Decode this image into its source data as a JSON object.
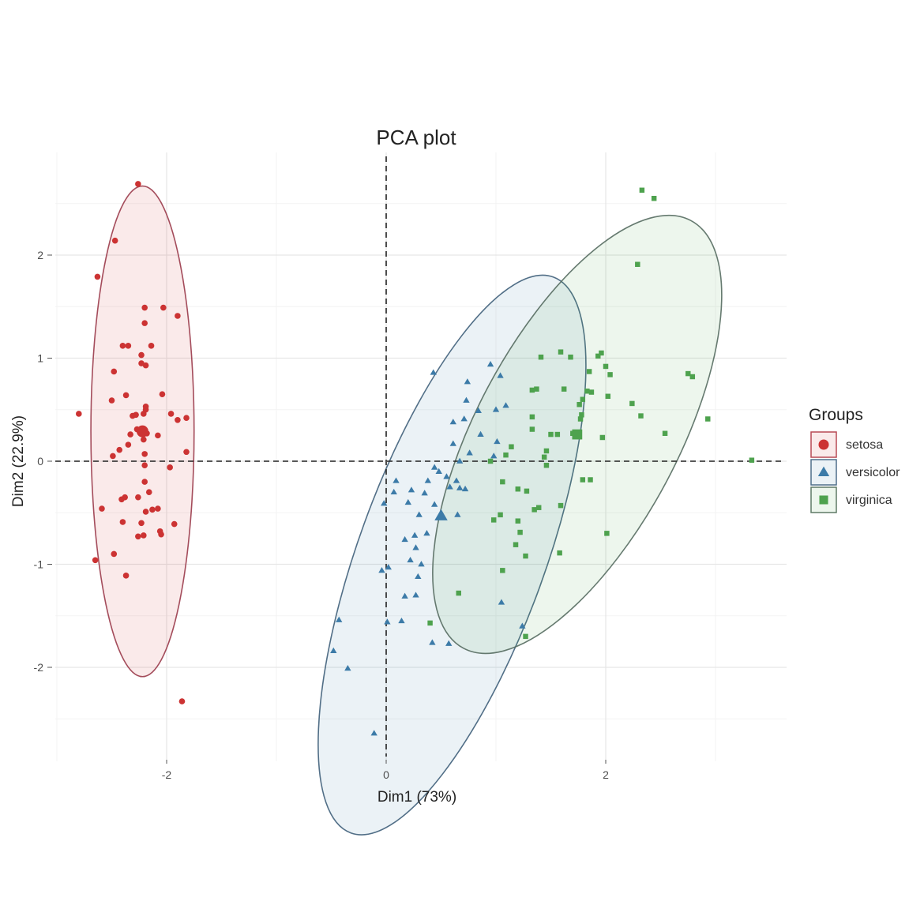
{
  "chart_data": {
    "type": "scatter",
    "title": "PCA plot",
    "xlabel": "Dim1 (73%)",
    "ylabel": "Dim2 (22.9%)",
    "xlim": [
      -3.0,
      3.7
    ],
    "ylim": [
      -2.85,
      3.25
    ],
    "xticks": [
      -2,
      0,
      2
    ],
    "yticks": [
      -2,
      -1,
      0,
      1,
      2
    ],
    "xtick_labels": [
      "-2",
      "0",
      "2"
    ],
    "ytick_labels": [
      "-2",
      "-1",
      "0",
      "1",
      "2"
    ],
    "grid": true,
    "reference_lines": {
      "x": 0,
      "y": 0,
      "style": "dashed"
    },
    "legend": {
      "title": "Groups",
      "position": "right"
    },
    "series": [
      {
        "name": "setosa",
        "color": "#cc3333",
        "marker": "circle",
        "centroid": [
          -2.22,
          0.29
        ],
        "ellipse": {
          "center": [
            -2.22,
            0.29
          ],
          "semi_axis_x": 0.47,
          "semi_axis_y": 2.38,
          "angle_deg": 0
        },
        "points": [
          [
            -2.26,
            2.69
          ],
          [
            -2.47,
            2.14
          ],
          [
            -2.63,
            1.79
          ],
          [
            -2.2,
            1.34
          ],
          [
            -2.35,
            1.12
          ],
          [
            -2.4,
            1.12
          ],
          [
            -2.14,
            1.12
          ],
          [
            -2.2,
            1.49
          ],
          [
            -2.03,
            1.49
          ],
          [
            -1.9,
            1.41
          ],
          [
            -2.23,
            1.03
          ],
          [
            -2.23,
            0.95
          ],
          [
            -2.19,
            0.93
          ],
          [
            -2.48,
            0.87
          ],
          [
            -2.8,
            0.46
          ],
          [
            -2.5,
            0.59
          ],
          [
            -2.37,
            0.64
          ],
          [
            -2.31,
            0.44
          ],
          [
            -2.28,
            0.45
          ],
          [
            -2.19,
            0.5
          ],
          [
            -2.19,
            0.53
          ],
          [
            -2.21,
            0.46
          ],
          [
            -2.04,
            0.65
          ],
          [
            -1.96,
            0.46
          ],
          [
            -1.9,
            0.4
          ],
          [
            -1.82,
            0.42
          ],
          [
            -2.27,
            0.31
          ],
          [
            -2.23,
            0.27
          ],
          [
            -2.18,
            0.27
          ],
          [
            -2.33,
            0.26
          ],
          [
            -2.21,
            0.21
          ],
          [
            -2.08,
            0.25
          ],
          [
            -2.35,
            0.16
          ],
          [
            -2.49,
            0.05
          ],
          [
            -2.2,
            0.07
          ],
          [
            -2.43,
            0.11
          ],
          [
            -1.82,
            0.09
          ],
          [
            -2.2,
            -0.04
          ],
          [
            -1.97,
            -0.06
          ],
          [
            -2.2,
            -0.2
          ],
          [
            -2.38,
            -0.35
          ],
          [
            -2.41,
            -0.37
          ],
          [
            -2.26,
            -0.35
          ],
          [
            -2.16,
            -0.3
          ],
          [
            -2.19,
            -0.49
          ],
          [
            -2.13,
            -0.47
          ],
          [
            -2.08,
            -0.46
          ],
          [
            -2.59,
            -0.46
          ],
          [
            -2.4,
            -0.59
          ],
          [
            -2.23,
            -0.6
          ],
          [
            -1.93,
            -0.61
          ],
          [
            -2.06,
            -0.68
          ],
          [
            -2.05,
            -0.71
          ],
          [
            -2.21,
            -0.72
          ],
          [
            -2.26,
            -0.73
          ],
          [
            -2.48,
            -0.9
          ],
          [
            -2.65,
            -0.96
          ],
          [
            -2.37,
            -1.11
          ],
          [
            -1.86,
            -2.33
          ]
        ]
      },
      {
        "name": "versicolor",
        "color": "#3c7ba8",
        "marker": "triangle",
        "centroid": [
          0.5,
          -0.53
        ],
        "ellipse": {
          "center": [
            0.6,
            -0.91
          ],
          "semi_axis_x": 0.85,
          "semi_axis_y": 2.87,
          "angle_deg": 20
        },
        "points": [
          [
            0.43,
            0.86
          ],
          [
            0.74,
            0.77
          ],
          [
            0.73,
            0.59
          ],
          [
            0.95,
            0.94
          ],
          [
            1.04,
            0.83
          ],
          [
            1.09,
            0.54
          ],
          [
            0.84,
            0.49
          ],
          [
            1.0,
            0.5
          ],
          [
            0.71,
            0.41
          ],
          [
            0.61,
            0.38
          ],
          [
            0.86,
            0.26
          ],
          [
            1.01,
            0.19
          ],
          [
            0.61,
            0.17
          ],
          [
            0.67,
            0.0
          ],
          [
            0.76,
            0.08
          ],
          [
            0.98,
            0.05
          ],
          [
            0.44,
            -0.06
          ],
          [
            0.48,
            -0.1
          ],
          [
            0.64,
            -0.19
          ],
          [
            0.72,
            -0.27
          ],
          [
            0.55,
            -0.15
          ],
          [
            0.58,
            -0.25
          ],
          [
            0.67,
            -0.26
          ],
          [
            0.38,
            -0.19
          ],
          [
            0.09,
            -0.19
          ],
          [
            0.07,
            -0.3
          ],
          [
            0.23,
            -0.28
          ],
          [
            0.2,
            -0.4
          ],
          [
            0.35,
            -0.31
          ],
          [
            -0.02,
            -0.41
          ],
          [
            0.3,
            -0.52
          ],
          [
            0.44,
            -0.42
          ],
          [
            0.65,
            -0.52
          ],
          [
            0.5,
            -0.53
          ],
          [
            0.37,
            -0.7
          ],
          [
            0.26,
            -0.72
          ],
          [
            0.17,
            -0.76
          ],
          [
            0.27,
            -0.84
          ],
          [
            0.22,
            -0.96
          ],
          [
            0.32,
            -1.0
          ],
          [
            0.02,
            -1.03
          ],
          [
            -0.04,
            -1.06
          ],
          [
            0.29,
            -1.12
          ],
          [
            0.17,
            -1.31
          ],
          [
            0.27,
            -1.3
          ],
          [
            -0.43,
            -1.54
          ],
          [
            0.01,
            -1.56
          ],
          [
            0.14,
            -1.55
          ],
          [
            0.42,
            -1.76
          ],
          [
            0.57,
            -1.77
          ],
          [
            1.05,
            -1.37
          ],
          [
            1.24,
            -1.6
          ],
          [
            -0.48,
            -1.84
          ],
          [
            -0.35,
            -2.01
          ],
          [
            -0.11,
            -2.64
          ]
        ]
      },
      {
        "name": "virginica",
        "color": "#4ea24e",
        "marker": "square",
        "centroid": [
          1.74,
          0.26
        ],
        "ellipse": {
          "center": [
            1.74,
            0.26
          ],
          "semi_axis_x": 0.92,
          "semi_axis_y": 2.35,
          "angle_deg": 28
        },
        "points": [
          [
            2.33,
            2.63
          ],
          [
            2.44,
            2.55
          ],
          [
            2.29,
            1.91
          ],
          [
            1.59,
            1.06
          ],
          [
            1.41,
            1.01
          ],
          [
            1.68,
            1.01
          ],
          [
            1.93,
            1.02
          ],
          [
            1.96,
            1.05
          ],
          [
            2.0,
            0.92
          ],
          [
            2.04,
            0.84
          ],
          [
            1.85,
            0.87
          ],
          [
            1.37,
            0.7
          ],
          [
            1.33,
            0.69
          ],
          [
            1.62,
            0.7
          ],
          [
            1.83,
            0.68
          ],
          [
            1.87,
            0.67
          ],
          [
            1.79,
            0.6
          ],
          [
            1.76,
            0.55
          ],
          [
            2.02,
            0.63
          ],
          [
            2.24,
            0.56
          ],
          [
            2.79,
            0.82
          ],
          [
            2.75,
            0.85
          ],
          [
            2.32,
            0.44
          ],
          [
            2.93,
            0.41
          ],
          [
            2.54,
            0.27
          ],
          [
            1.78,
            0.45
          ],
          [
            1.77,
            0.41
          ],
          [
            1.33,
            0.43
          ],
          [
            1.33,
            0.31
          ],
          [
            1.5,
            0.26
          ],
          [
            1.56,
            0.26
          ],
          [
            1.7,
            0.27
          ],
          [
            1.74,
            0.26
          ],
          [
            1.97,
            0.23
          ],
          [
            1.14,
            0.14
          ],
          [
            0.95,
            0.0
          ],
          [
            1.46,
            0.1
          ],
          [
            1.44,
            0.04
          ],
          [
            1.46,
            -0.04
          ],
          [
            1.09,
            0.06
          ],
          [
            1.06,
            -0.2
          ],
          [
            3.33,
            0.01
          ],
          [
            1.79,
            -0.18
          ],
          [
            1.86,
            -0.18
          ],
          [
            1.2,
            -0.27
          ],
          [
            1.28,
            -0.29
          ],
          [
            1.39,
            -0.45
          ],
          [
            1.59,
            -0.43
          ],
          [
            1.35,
            -0.47
          ],
          [
            0.98,
            -0.57
          ],
          [
            1.04,
            -0.52
          ],
          [
            1.2,
            -0.58
          ],
          [
            1.22,
            -0.69
          ],
          [
            1.18,
            -0.81
          ],
          [
            1.27,
            -0.92
          ],
          [
            1.58,
            -0.89
          ],
          [
            2.01,
            -0.7
          ],
          [
            1.06,
            -1.06
          ],
          [
            0.66,
            -1.28
          ],
          [
            0.4,
            -1.57
          ],
          [
            1.27,
            -1.7
          ]
        ]
      }
    ]
  }
}
